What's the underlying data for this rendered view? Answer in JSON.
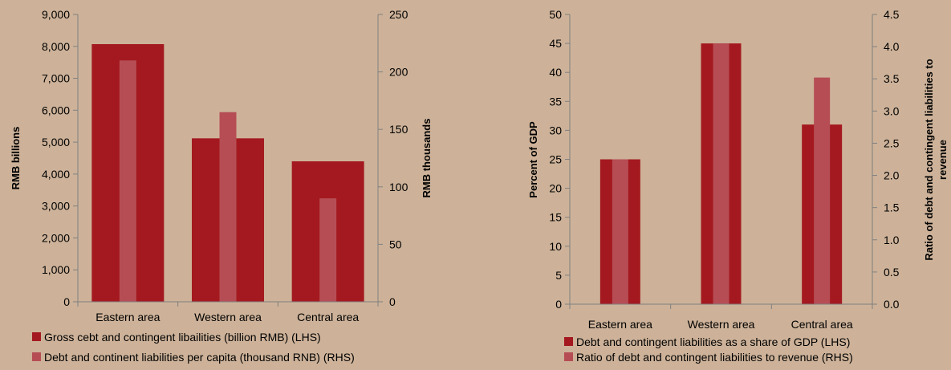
{
  "colors": {
    "background": "#cdb299",
    "primary_bar": "#a4191f",
    "secondary_bar": "#b64d55",
    "axis": "#808080"
  },
  "chart_data": [
    {
      "type": "bar",
      "categories": [
        "Eastern area",
        "Western area",
        "Central area"
      ],
      "ylabel": "RMB billions",
      "y2label": "RMB thousands",
      "ylim": [
        0,
        9000
      ],
      "y2lim": [
        0,
        250
      ],
      "yticks": [
        "0",
        "1,000",
        "2,000",
        "3,000",
        "4,000",
        "5,000",
        "6,000",
        "7,000",
        "8,000",
        "9,000"
      ],
      "y2ticks": [
        "0",
        "50",
        "100",
        "150",
        "200",
        "250"
      ],
      "series": [
        {
          "name": "Gross cebt and contingent libailities (billion RMB) (LHS)",
          "axis": "left",
          "values": [
            8070,
            5120,
            4400
          ]
        },
        {
          "name": "Debt and continent liabilities per capita (thousand RNB) (RHS)",
          "axis": "right",
          "values": [
            210,
            165,
            90
          ]
        }
      ],
      "legend": "bottom-left",
      "grid": false
    },
    {
      "type": "bar",
      "categories": [
        "Eastern area",
        "Western area",
        "Central area"
      ],
      "ylabel": "Percent of GDP",
      "y2label": "Ratio of debt and contingent liabilities to revenue",
      "ylim": [
        0,
        50
      ],
      "y2lim": [
        0,
        4.5
      ],
      "yticks": [
        "0",
        "5",
        "10",
        "15",
        "20",
        "25",
        "30",
        "35",
        "40",
        "45",
        "50"
      ],
      "y2ticks": [
        "0.0",
        "0.5",
        "1.0",
        "1.5",
        "2.0",
        "2.5",
        "3.0",
        "3.5",
        "4.0",
        "4.5"
      ],
      "series": [
        {
          "name": "Debt and contingent liabilities as a share of GDP (LHS)",
          "axis": "left",
          "values": [
            25,
            45,
            31
          ]
        },
        {
          "name": "Ratio of debt and contingent liabilities to revenue (RHS)",
          "axis": "right",
          "values": [
            2.25,
            4.05,
            3.52
          ]
        }
      ],
      "legend": "bottom-left",
      "grid": false
    }
  ]
}
